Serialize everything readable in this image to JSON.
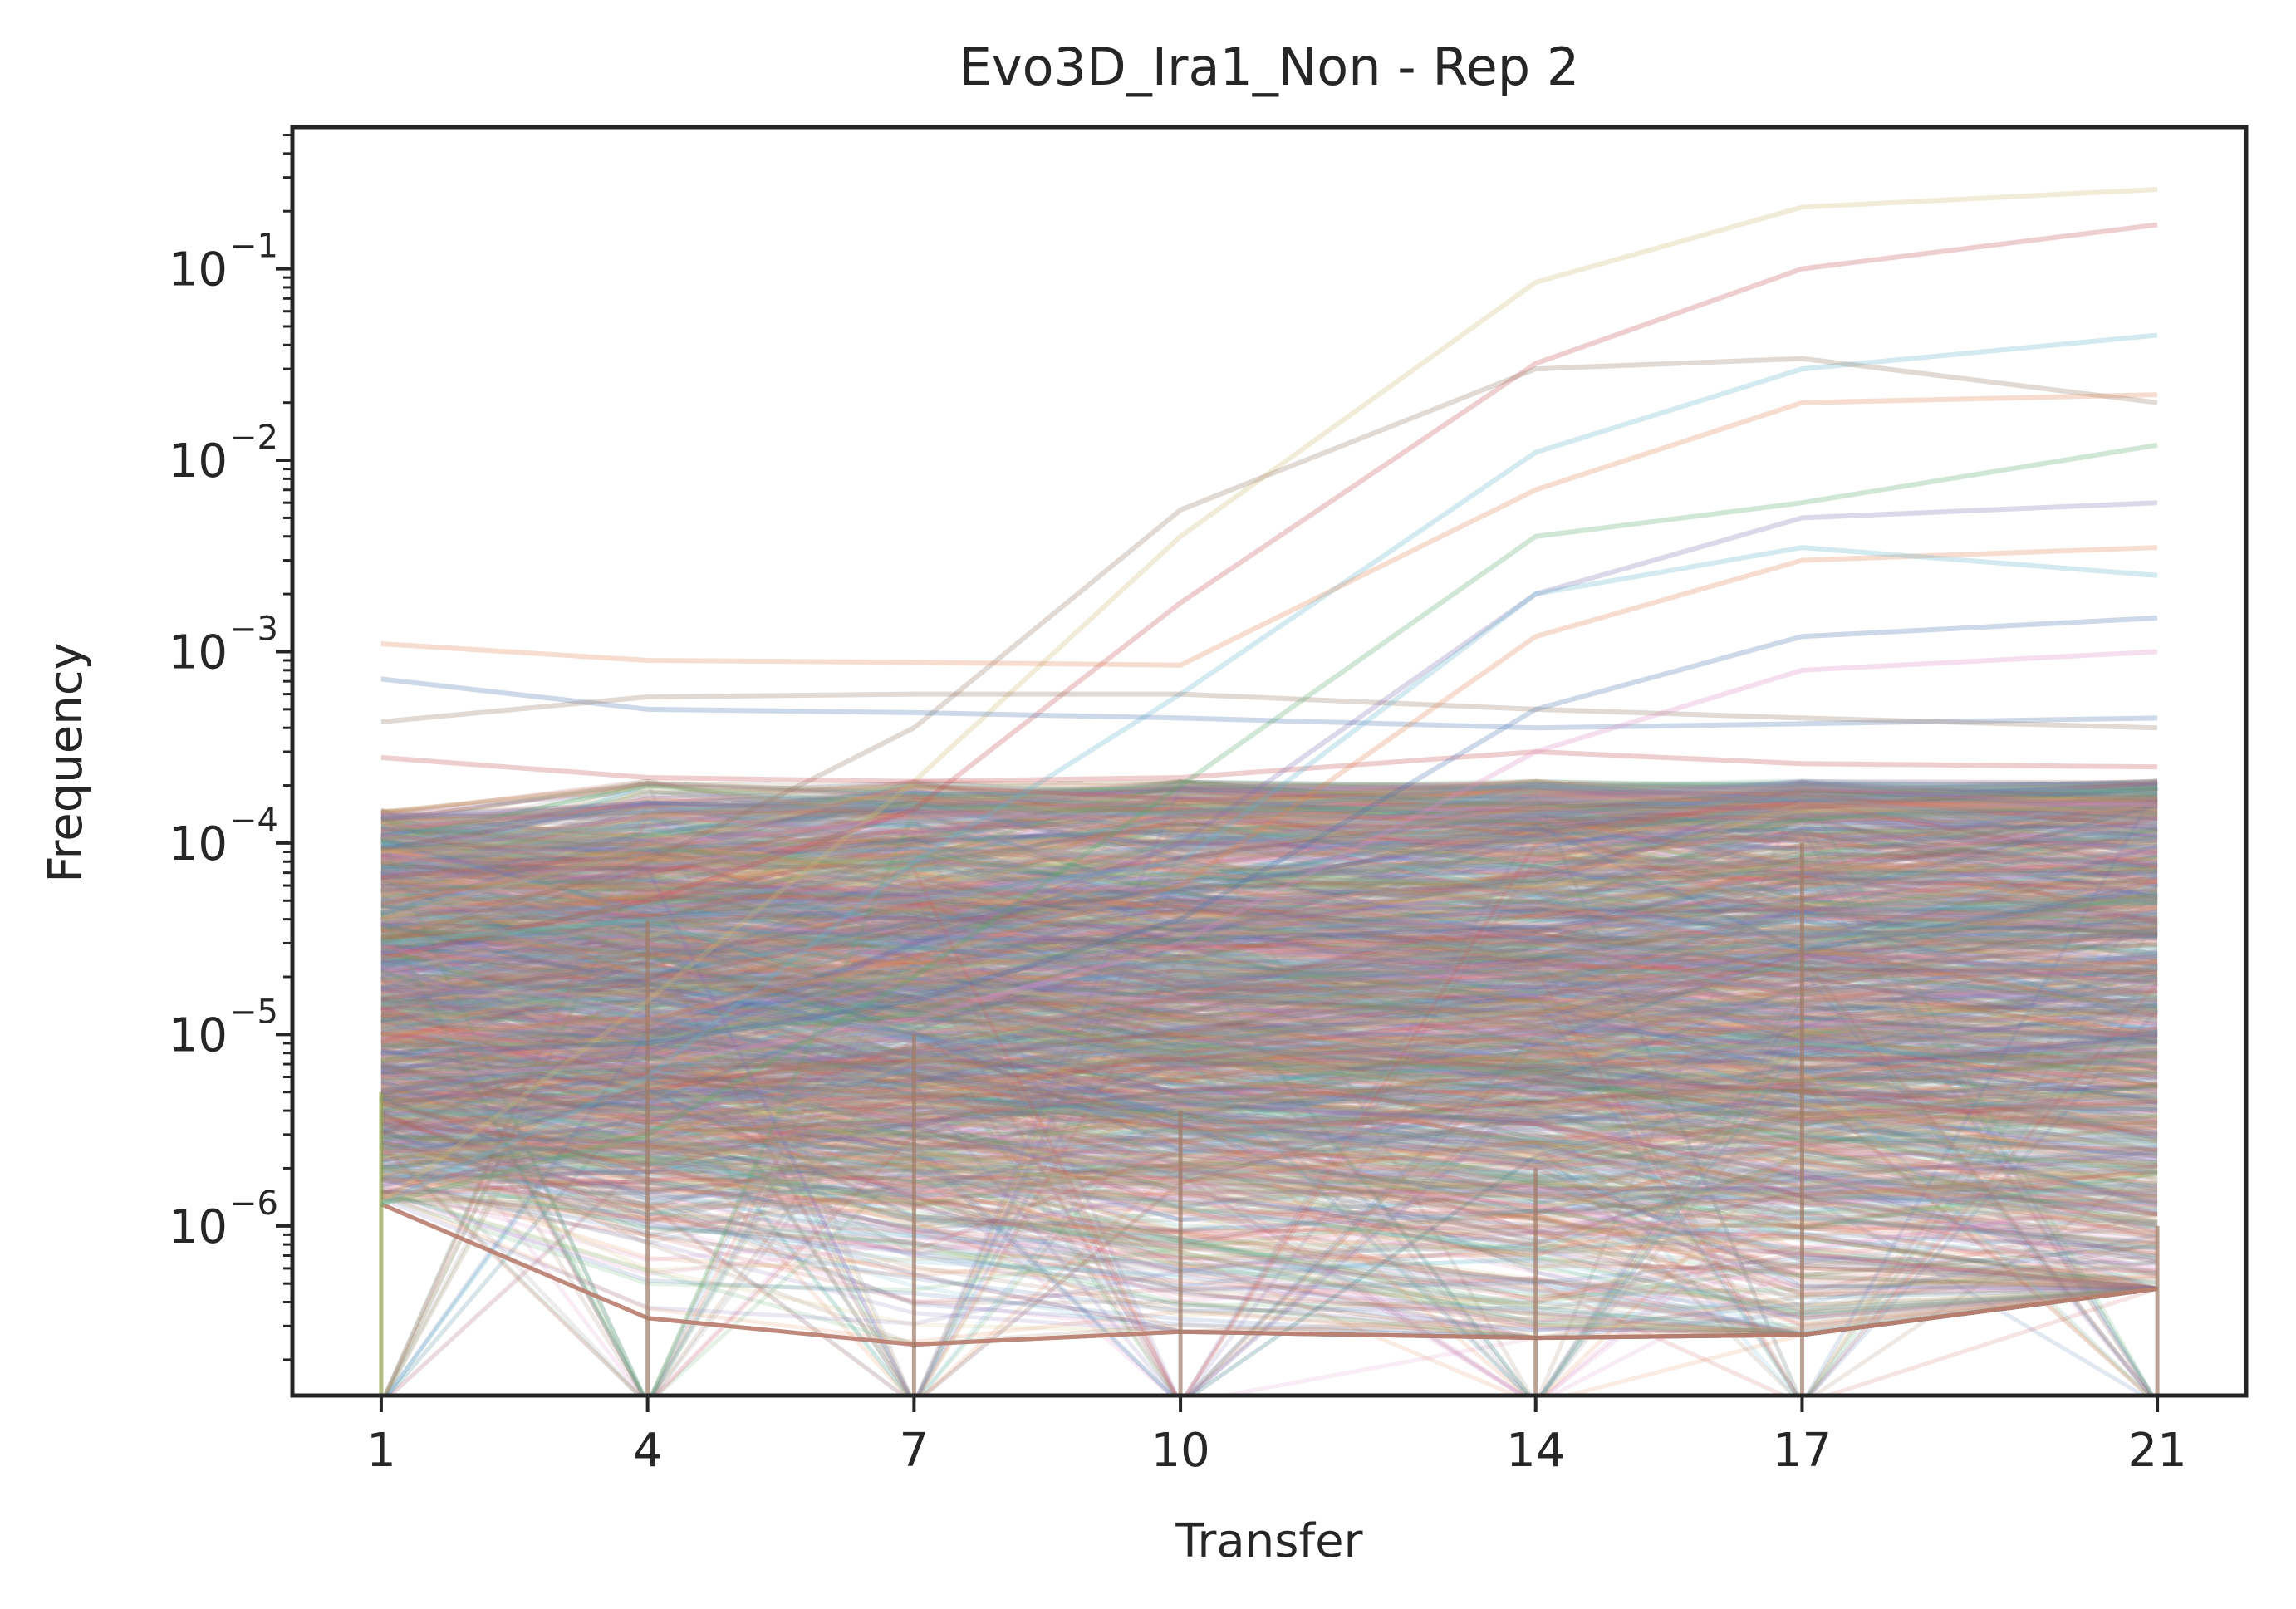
{
  "chart_data": {
    "type": "line",
    "title": "Evo3D_Ira1_Non - Rep 2",
    "xlabel": "Transfer",
    "ylabel": "Frequency",
    "x": [
      1,
      4,
      7,
      10,
      14,
      17,
      21
    ],
    "xlim": [
      0,
      22
    ],
    "ylim": [
      1.3e-07,
      0.55
    ],
    "yscale": "log",
    "grid": false,
    "legend": "none",
    "x_ticks": [
      "1",
      "4",
      "7",
      "10",
      "14",
      "17",
      "21"
    ],
    "y_ticks": [
      {
        "base": "10",
        "exp": "−6",
        "value": 1e-06
      },
      {
        "base": "10",
        "exp": "−5",
        "value": 1e-05
      },
      {
        "base": "10",
        "exp": "−4",
        "value": 0.0001
      },
      {
        "base": "10",
        "exp": "−3",
        "value": 0.001
      },
      {
        "base": "10",
        "exp": "−2",
        "value": 0.01
      },
      {
        "base": "10",
        "exp": "−1",
        "value": 0.1
      }
    ],
    "palette": [
      "#4c72b0",
      "#dd8452",
      "#55a868",
      "#c44e52",
      "#8172b3",
      "#937860",
      "#da8bc3",
      "#8c8c8c",
      "#ccb974",
      "#64b5cd"
    ],
    "series": [
      {
        "color": "#ccb974",
        "values": [
          1.3e-06,
          1.5e-05,
          0.00021,
          0.004,
          0.085,
          0.21,
          0.26
        ]
      },
      {
        "color": "#c44e52",
        "values": [
          2.5e-05,
          5e-05,
          0.00015,
          0.0018,
          0.032,
          0.1,
          0.17
        ]
      },
      {
        "color": "#64b5cd",
        "values": [
          1.3e-06,
          6e-06,
          8e-05,
          0.0006,
          0.011,
          0.03,
          0.045
        ]
      },
      {
        "color": "#937860",
        "values": [
          3e-05,
          8e-05,
          0.0004,
          0.0055,
          0.03,
          0.034,
          0.02
        ]
      },
      {
        "color": "#dd8452",
        "values": [
          0.0011,
          0.0009,
          0.00088,
          0.00085,
          0.007,
          0.02,
          0.022
        ]
      },
      {
        "color": "#4c72b0",
        "values": [
          0.00072,
          0.0005,
          0.00048,
          0.00045,
          0.0004,
          0.00042,
          0.00045
        ]
      },
      {
        "color": "#937860",
        "values": [
          0.00043,
          0.00058,
          0.0006,
          0.0006,
          0.0005,
          0.00045,
          0.0004
        ]
      },
      {
        "color": "#c44e52",
        "values": [
          0.00028,
          0.00022,
          0.00021,
          0.00022,
          0.0003,
          0.00026,
          0.00025
        ]
      },
      {
        "color": "#55a868",
        "values": [
          1.3e-06,
          3e-06,
          2e-05,
          0.0002,
          0.004,
          0.006,
          0.012
        ]
      },
      {
        "color": "#8172b3",
        "values": [
          5e-06,
          8e-06,
          3e-05,
          0.0001,
          0.002,
          0.005,
          0.006
        ]
      },
      {
        "color": "#dd8452",
        "values": [
          1e-05,
          1.2e-05,
          2.5e-05,
          6e-05,
          0.0012,
          0.003,
          0.0035
        ]
      },
      {
        "color": "#4c72b0",
        "values": [
          8e-06,
          9e-06,
          1.5e-05,
          4e-05,
          0.0005,
          0.0012,
          0.0015
        ]
      },
      {
        "color": "#da8bc3",
        "values": [
          6e-06,
          7e-06,
          1.2e-05,
          3e-05,
          0.0003,
          0.0008,
          0.001
        ]
      },
      {
        "color": "#64b5cd",
        "values": [
          3e-05,
          4e-05,
          5e-05,
          8e-05,
          0.002,
          0.0035,
          0.0025
        ]
      }
    ],
    "background_trajectories": {
      "count": 1400,
      "min_frequency": [
        1.3e-06,
        3.3e-07,
        2.4e-07,
        2.8e-07,
        2.6e-07,
        2.7e-07,
        4.7e-07
      ],
      "dense_band_top": 0.00015
    }
  }
}
